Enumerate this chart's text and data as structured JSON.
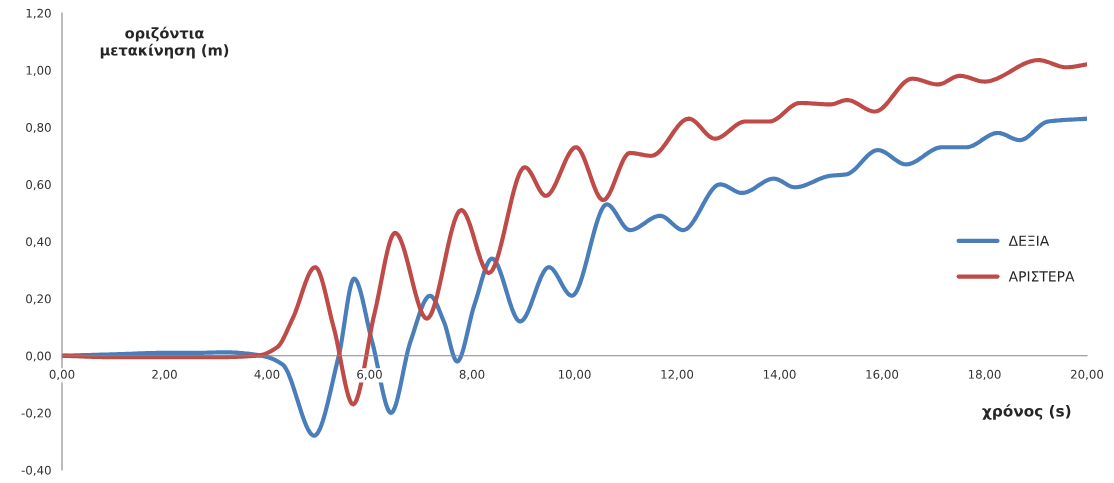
{
  "chart_data": {
    "type": "line",
    "xlabel": "χρόνος (s)",
    "ylabel": "οριζόντια\nμετακίνηση (m)",
    "xlim": [
      0,
      20
    ],
    "ylim": [
      -0.4,
      1.2
    ],
    "xticks": [
      {
        "value": 0,
        "label": "0,00"
      },
      {
        "value": 2,
        "label": "2,00"
      },
      {
        "value": 4,
        "label": "4,00"
      },
      {
        "value": 6,
        "label": "6,00"
      },
      {
        "value": 8,
        "label": "8,00"
      },
      {
        "value": 10,
        "label": "10,00"
      },
      {
        "value": 12,
        "label": "12,00"
      },
      {
        "value": 14,
        "label": "14,00"
      },
      {
        "value": 16,
        "label": "16,00"
      },
      {
        "value": 18,
        "label": "18,00"
      },
      {
        "value": 20,
        "label": "20,00"
      }
    ],
    "yticks": [
      {
        "value": -0.4,
        "label": "-0,40"
      },
      {
        "value": -0.2,
        "label": "-0,20"
      },
      {
        "value": 0,
        "label": "0,00"
      },
      {
        "value": 0.2,
        "label": "0,20"
      },
      {
        "value": 0.4,
        "label": "0,40"
      },
      {
        "value": 0.6,
        "label": "0,60"
      },
      {
        "value": 0.8,
        "label": "0,80"
      },
      {
        "value": 1.0,
        "label": "1,00"
      },
      {
        "value": 1.2,
        "label": "1,20"
      }
    ],
    "grid": false,
    "legend": "right",
    "marker": "none",
    "line_style": "solid",
    "series": [
      {
        "name": "ΔΕΞΙΑ",
        "color": "#4a7ebb",
        "x": [
          0,
          1,
          2,
          2.6,
          3.2,
          3.9,
          4.3,
          4.92,
          5.4,
          5.7,
          6.05,
          6.42,
          6.8,
          7.18,
          7.45,
          7.71,
          8.05,
          8.39,
          8.94,
          9.5,
          9.95,
          10.63,
          11.08,
          11.67,
          12.12,
          12.84,
          13.27,
          13.89,
          14.3,
          14.99,
          15.3,
          15.92,
          16.47,
          17.17,
          17.64,
          18.26,
          18.69,
          19.24,
          20
        ],
        "values": [
          0,
          0.005,
          0.01,
          0.01,
          0.012,
          0.0,
          -0.03,
          -0.28,
          0.0,
          0.27,
          0.05,
          -0.2,
          0.05,
          0.21,
          0.12,
          -0.02,
          0.18,
          0.34,
          0.12,
          0.31,
          0.21,
          0.53,
          0.44,
          0.49,
          0.44,
          0.6,
          0.57,
          0.62,
          0.59,
          0.63,
          0.635,
          0.72,
          0.67,
          0.73,
          0.73,
          0.78,
          0.755,
          0.82,
          0.83
        ]
      },
      {
        "name": "ΑΡΙΣΤΕΡΑ",
        "color": "#be4b48",
        "x": [
          0,
          1,
          2,
          3,
          3.8,
          4.2,
          4.5,
          4.94,
          5.3,
          5.68,
          6.1,
          6.5,
          7.12,
          7.79,
          8.33,
          9.03,
          9.44,
          10.03,
          10.56,
          11.08,
          11.5,
          12.23,
          12.74,
          13.33,
          13.8,
          14.4,
          14.99,
          15.32,
          15.86,
          16.59,
          17.09,
          17.52,
          18.0,
          19.05,
          19.6,
          20
        ],
        "values": [
          0,
          -0.005,
          -0.005,
          -0.005,
          0.0,
          0.03,
          0.13,
          0.31,
          0.1,
          -0.17,
          0.15,
          0.43,
          0.13,
          0.51,
          0.29,
          0.66,
          0.56,
          0.73,
          0.545,
          0.71,
          0.7,
          0.83,
          0.76,
          0.82,
          0.82,
          0.885,
          0.88,
          0.895,
          0.855,
          0.97,
          0.95,
          0.98,
          0.96,
          1.035,
          1.01,
          1.02
        ]
      }
    ]
  }
}
